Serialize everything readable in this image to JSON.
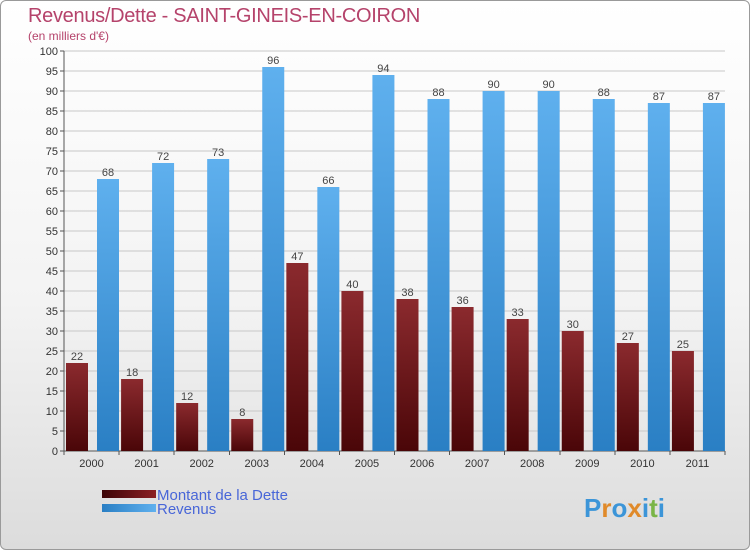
{
  "title": "Revenus/Dette - SAINT-GINEIS-EN-COIRON",
  "subtitle": "(en milliers d'€)",
  "logo_text": "Proxiti",
  "colors": {
    "title": "#b5436b",
    "debt": "#8b1f23",
    "revenue": "#3c95d8",
    "legend_text": "#4866d8"
  },
  "chart_data": {
    "type": "bar",
    "categories": [
      "2000",
      "2001",
      "2002",
      "2003",
      "2004",
      "2005",
      "2006",
      "2007",
      "2008",
      "2009",
      "2010",
      "2011"
    ],
    "series": [
      {
        "name": "Montant de la Dette",
        "values": [
          22,
          18,
          12,
          8,
          47,
          40,
          38,
          36,
          33,
          30,
          27,
          25
        ]
      },
      {
        "name": "Revenus",
        "values": [
          68,
          72,
          73,
          96,
          66,
          94,
          88,
          90,
          90,
          88,
          87,
          87
        ]
      }
    ],
    "ylim": [
      0,
      100
    ],
    "ytick_step": 5,
    "grid": true,
    "legend_position": "bottom-left"
  }
}
